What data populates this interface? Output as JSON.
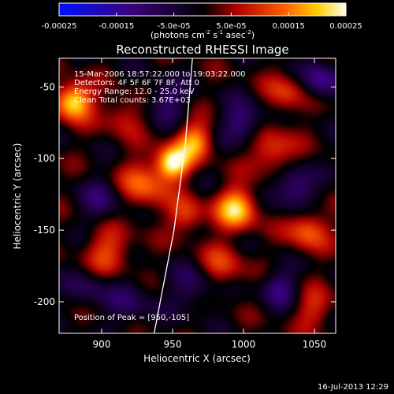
{
  "chart_data": {
    "type": "heatmap",
    "title": "Reconstructed RHESSI Image",
    "xlabel": "Heliocentric X (arcsec)",
    "ylabel": "Heliocentric Y (arcsec)",
    "xlim": [
      870,
      1065
    ],
    "ylim": [
      -222,
      -30
    ],
    "xticks": [
      900,
      950,
      1000,
      1050
    ],
    "yticks": [
      -50,
      -100,
      -150,
      -200
    ],
    "colorbar": {
      "min": -0.00025,
      "max": 0.00025,
      "ticks": [
        "-0.00025",
        "-0.00015",
        "-5.0e-05",
        "5.0e-05",
        "0.00015",
        "0.00025"
      ],
      "units_main": "(photons cm",
      "units_exp1": "-2",
      "units_mid": " s",
      "units_exp2": "-1",
      "units_end": " asec",
      "units_exp3": "-2",
      "units_close": ")"
    },
    "annotations": [
      "15-Mar-2006 18:57:22.000 to 19:03:22.000",
      "Detectors: 4F 5F 6F 7F 8F, Att 0",
      "Energy Range: 12.0 - 25.0 keV",
      "Clean    Total counts: 3.67E+03"
    ],
    "peak_label": "Position of Peak = [950,-105]",
    "blobs": [
      {
        "x": 950,
        "y": -103,
        "amp": 1.0,
        "s": 8
      },
      {
        "x": 880,
        "y": -60,
        "amp": 0.95,
        "s": 9
      },
      {
        "x": 995,
        "y": -135,
        "amp": 0.85,
        "s": 10
      },
      {
        "x": 965,
        "y": -88,
        "amp": 0.7,
        "s": 9
      },
      {
        "x": 930,
        "y": -118,
        "amp": 0.55,
        "s": 12
      },
      {
        "x": 905,
        "y": -165,
        "amp": 0.45,
        "s": 12
      },
      {
        "x": 1020,
        "y": -95,
        "amp": 0.5,
        "s": 11
      },
      {
        "x": 1045,
        "y": -150,
        "amp": 0.55,
        "s": 10
      },
      {
        "x": 1030,
        "y": -55,
        "amp": 0.4,
        "s": 10
      },
      {
        "x": 985,
        "y": -175,
        "amp": 0.4,
        "s": 11
      },
      {
        "x": 1050,
        "y": -205,
        "amp": 0.35,
        "s": 10
      },
      {
        "x": 915,
        "y": -70,
        "amp": 0.35,
        "s": 10
      },
      {
        "x": 960,
        "y": -140,
        "amp": 0.45,
        "s": 9
      },
      {
        "x": 1000,
        "y": -75,
        "amp": -0.5,
        "s": 10
      },
      {
        "x": 1035,
        "y": -120,
        "amp": -0.55,
        "s": 10
      },
      {
        "x": 900,
        "y": -130,
        "amp": -0.35,
        "s": 11
      },
      {
        "x": 945,
        "y": -60,
        "amp": -0.4,
        "s": 10
      },
      {
        "x": 1055,
        "y": -45,
        "amp": -0.55,
        "s": 9
      },
      {
        "x": 920,
        "y": -200,
        "amp": -0.3,
        "s": 12
      },
      {
        "x": 1025,
        "y": -190,
        "amp": -0.45,
        "s": 9
      },
      {
        "x": 965,
        "y": -190,
        "amp": -0.35,
        "s": 11
      },
      {
        "x": 890,
        "y": -190,
        "amp": -0.3,
        "s": 10
      }
    ],
    "limb_curve": [
      {
        "x": 964,
        "y": -30
      },
      {
        "x": 959,
        "y": -90
      },
      {
        "x": 951,
        "y": -150
      },
      {
        "x": 937,
        "y": -222
      }
    ]
  },
  "footer_timestamp": "16-Jul-2013 12:29"
}
